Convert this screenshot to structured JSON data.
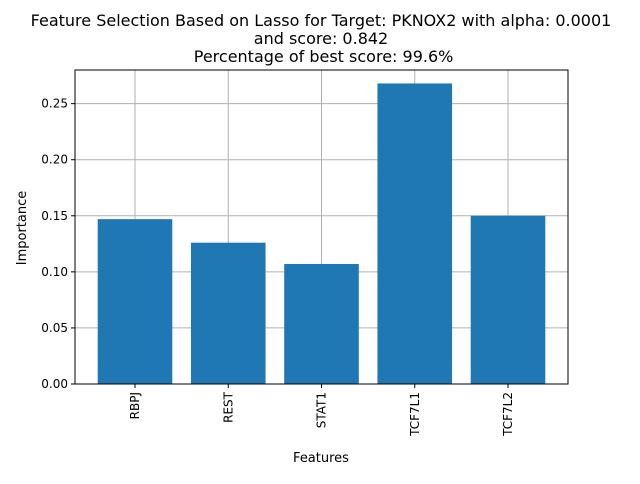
{
  "chart_data": {
    "type": "bar",
    "title_lines": [
      "Feature Selection Based on Lasso for Target: PKNOX2 with alpha: 0.0001",
      "and score: 0.842",
      " Percentage of best score: 99.6%"
    ],
    "xlabel": "Features",
    "ylabel": "Importance",
    "categories": [
      "RBPJ",
      "REST",
      "STAT1",
      "TCF7L1",
      "TCF7L2"
    ],
    "values": [
      0.147,
      0.126,
      0.107,
      0.268,
      0.15
    ],
    "ylim": [
      0,
      0.28
    ],
    "yticks": [
      0.0,
      0.05,
      0.1,
      0.15,
      0.2,
      0.25
    ],
    "ytick_labels": [
      "0.00",
      "0.05",
      "0.10",
      "0.15",
      "0.20",
      "0.25"
    ],
    "grid": true,
    "bar_color": "#1f77b4",
    "grid_color": "#b0b0b0"
  }
}
